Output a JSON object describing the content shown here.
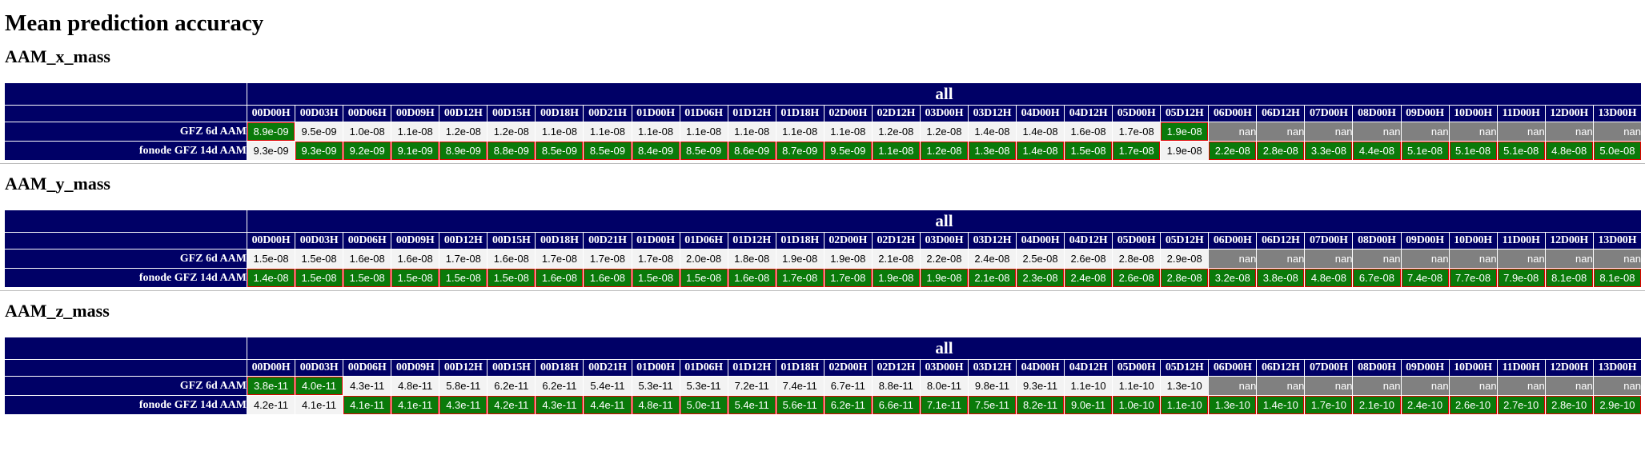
{
  "title": "Mean prediction accuracy",
  "header_group": "all",
  "leads": [
    "00D00H",
    "00D03H",
    "00D06H",
    "00D09H",
    "00D12H",
    "00D15H",
    "00D18H",
    "00D21H",
    "01D00H",
    "01D06H",
    "01D12H",
    "01D18H",
    "02D00H",
    "02D12H",
    "03D00H",
    "03D12H",
    "04D00H",
    "04D12H",
    "05D00H",
    "05D12H",
    "06D00H",
    "06D12H",
    "07D00H",
    "08D00H",
    "09D00H",
    "10D00H",
    "11D00H",
    "12D00H",
    "13D00H"
  ],
  "colors": {
    "header_bg": "#000066",
    "best": "#0a7a0a",
    "best_border": "#e00000",
    "neutral": "#f3f3f3",
    "nan": "#808080"
  },
  "sections": [
    {
      "name": "AAM_x_mass",
      "rows": [
        {
          "label": "GFZ 6d AAM",
          "values": [
            "8.9e-09",
            "9.5e-09",
            "1.0e-08",
            "1.1e-08",
            "1.2e-08",
            "1.2e-08",
            "1.1e-08",
            "1.1e-08",
            "1.1e-08",
            "1.1e-08",
            "1.1e-08",
            "1.1e-08",
            "1.1e-08",
            "1.2e-08",
            "1.2e-08",
            "1.4e-08",
            "1.4e-08",
            "1.6e-08",
            "1.7e-08",
            "1.9e-08",
            "nan",
            "nan",
            "nan",
            "nan",
            "nan",
            "nan",
            "nan",
            "nan",
            "nan"
          ],
          "best": [
            1,
            0,
            0,
            0,
            0,
            0,
            0,
            0,
            0,
            0,
            0,
            0,
            0,
            0,
            0,
            0,
            0,
            0,
            0,
            1,
            0,
            0,
            0,
            0,
            0,
            0,
            0,
            0,
            0
          ]
        },
        {
          "label": "fonode GFZ 14d AAM",
          "values": [
            "9.3e-09",
            "9.3e-09",
            "9.2e-09",
            "9.1e-09",
            "8.9e-09",
            "8.8e-09",
            "8.5e-09",
            "8.5e-09",
            "8.4e-09",
            "8.5e-09",
            "8.6e-09",
            "8.7e-09",
            "9.5e-09",
            "1.1e-08",
            "1.2e-08",
            "1.3e-08",
            "1.4e-08",
            "1.5e-08",
            "1.7e-08",
            "1.9e-08",
            "2.2e-08",
            "2.8e-08",
            "3.3e-08",
            "4.4e-08",
            "5.1e-08",
            "5.1e-08",
            "5.1e-08",
            "4.8e-08",
            "5.0e-08"
          ],
          "best": [
            0,
            1,
            1,
            1,
            1,
            1,
            1,
            1,
            1,
            1,
            1,
            1,
            1,
            1,
            1,
            1,
            1,
            1,
            1,
            0,
            1,
            1,
            1,
            1,
            1,
            1,
            1,
            1,
            1
          ]
        }
      ]
    },
    {
      "name": "AAM_y_mass",
      "rows": [
        {
          "label": "GFZ 6d AAM",
          "values": [
            "1.5e-08",
            "1.5e-08",
            "1.6e-08",
            "1.6e-08",
            "1.7e-08",
            "1.6e-08",
            "1.7e-08",
            "1.7e-08",
            "1.7e-08",
            "2.0e-08",
            "1.8e-08",
            "1.9e-08",
            "1.9e-08",
            "2.1e-08",
            "2.2e-08",
            "2.4e-08",
            "2.5e-08",
            "2.6e-08",
            "2.8e-08",
            "2.9e-08",
            "nan",
            "nan",
            "nan",
            "nan",
            "nan",
            "nan",
            "nan",
            "nan",
            "nan"
          ],
          "best": [
            0,
            0,
            0,
            0,
            0,
            0,
            0,
            0,
            0,
            0,
            0,
            0,
            0,
            0,
            0,
            0,
            0,
            0,
            0,
            0,
            0,
            0,
            0,
            0,
            0,
            0,
            0,
            0,
            0
          ]
        },
        {
          "label": "fonode GFZ 14d AAM",
          "values": [
            "1.4e-08",
            "1.5e-08",
            "1.5e-08",
            "1.5e-08",
            "1.5e-08",
            "1.5e-08",
            "1.6e-08",
            "1.6e-08",
            "1.5e-08",
            "1.5e-08",
            "1.6e-08",
            "1.7e-08",
            "1.7e-08",
            "1.9e-08",
            "1.9e-08",
            "2.1e-08",
            "2.3e-08",
            "2.4e-08",
            "2.6e-08",
            "2.8e-08",
            "3.2e-08",
            "3.8e-08",
            "4.8e-08",
            "6.7e-08",
            "7.4e-08",
            "7.7e-08",
            "7.9e-08",
            "8.1e-08",
            "8.1e-08"
          ],
          "best": [
            1,
            1,
            1,
            1,
            1,
            1,
            1,
            1,
            1,
            1,
            1,
            1,
            1,
            1,
            1,
            1,
            1,
            1,
            1,
            1,
            1,
            1,
            1,
            1,
            1,
            1,
            1,
            1,
            1
          ]
        }
      ]
    },
    {
      "name": "AAM_z_mass",
      "rows": [
        {
          "label": "GFZ 6d AAM",
          "values": [
            "3.8e-11",
            "4.0e-11",
            "4.3e-11",
            "4.8e-11",
            "5.8e-11",
            "6.2e-11",
            "6.2e-11",
            "5.4e-11",
            "5.3e-11",
            "5.3e-11",
            "7.2e-11",
            "7.4e-11",
            "6.7e-11",
            "8.8e-11",
            "8.0e-11",
            "9.8e-11",
            "9.3e-11",
            "1.1e-10",
            "1.1e-10",
            "1.3e-10",
            "nan",
            "nan",
            "nan",
            "nan",
            "nan",
            "nan",
            "nan",
            "nan",
            "nan"
          ],
          "best": [
            1,
            1,
            0,
            0,
            0,
            0,
            0,
            0,
            0,
            0,
            0,
            0,
            0,
            0,
            0,
            0,
            0,
            0,
            0,
            0,
            0,
            0,
            0,
            0,
            0,
            0,
            0,
            0,
            0
          ]
        },
        {
          "label": "fonode GFZ 14d AAM",
          "values": [
            "4.2e-11",
            "4.1e-11",
            "4.1e-11",
            "4.1e-11",
            "4.3e-11",
            "4.2e-11",
            "4.3e-11",
            "4.4e-11",
            "4.8e-11",
            "5.0e-11",
            "5.4e-11",
            "5.6e-11",
            "6.2e-11",
            "6.6e-11",
            "7.1e-11",
            "7.5e-11",
            "8.2e-11",
            "9.0e-11",
            "1.0e-10",
            "1.1e-10",
            "1.3e-10",
            "1.4e-10",
            "1.7e-10",
            "2.1e-10",
            "2.4e-10",
            "2.6e-10",
            "2.7e-10",
            "2.8e-10",
            "2.9e-10"
          ],
          "best": [
            0,
            0,
            1,
            1,
            1,
            1,
            1,
            1,
            1,
            1,
            1,
            1,
            1,
            1,
            1,
            1,
            1,
            1,
            1,
            1,
            1,
            1,
            1,
            1,
            1,
            1,
            1,
            1,
            1
          ]
        }
      ]
    }
  ]
}
